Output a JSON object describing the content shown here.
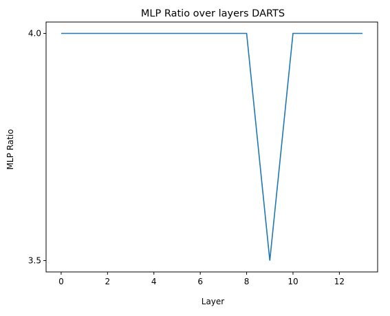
{
  "chart_data": {
    "type": "line",
    "title": "MLP Ratio over layers DARTS",
    "xlabel": "Layer",
    "ylabel": "MLP Ratio",
    "xlim": [
      -0.65,
      13.65
    ],
    "ylim": [
      3.475,
      4.025
    ],
    "xticks": [
      0,
      2,
      4,
      6,
      8,
      10,
      12
    ],
    "yticks": [
      3.5,
      4.0
    ],
    "xtick_labels": [
      "0",
      "2",
      "4",
      "6",
      "8",
      "10",
      "12"
    ],
    "ytick_labels": [
      "3.5",
      "4.0"
    ],
    "grid": false,
    "legend": "none",
    "series": [
      {
        "color": "#1f77b4",
        "x": [
          0,
          1,
          2,
          3,
          4,
          5,
          6,
          7,
          8,
          9,
          10,
          11,
          12,
          13
        ],
        "values": [
          4.0,
          4.0,
          4.0,
          4.0,
          4.0,
          4.0,
          4.0,
          4.0,
          4.0,
          3.5,
          4.0,
          4.0,
          4.0,
          4.0
        ]
      }
    ]
  }
}
